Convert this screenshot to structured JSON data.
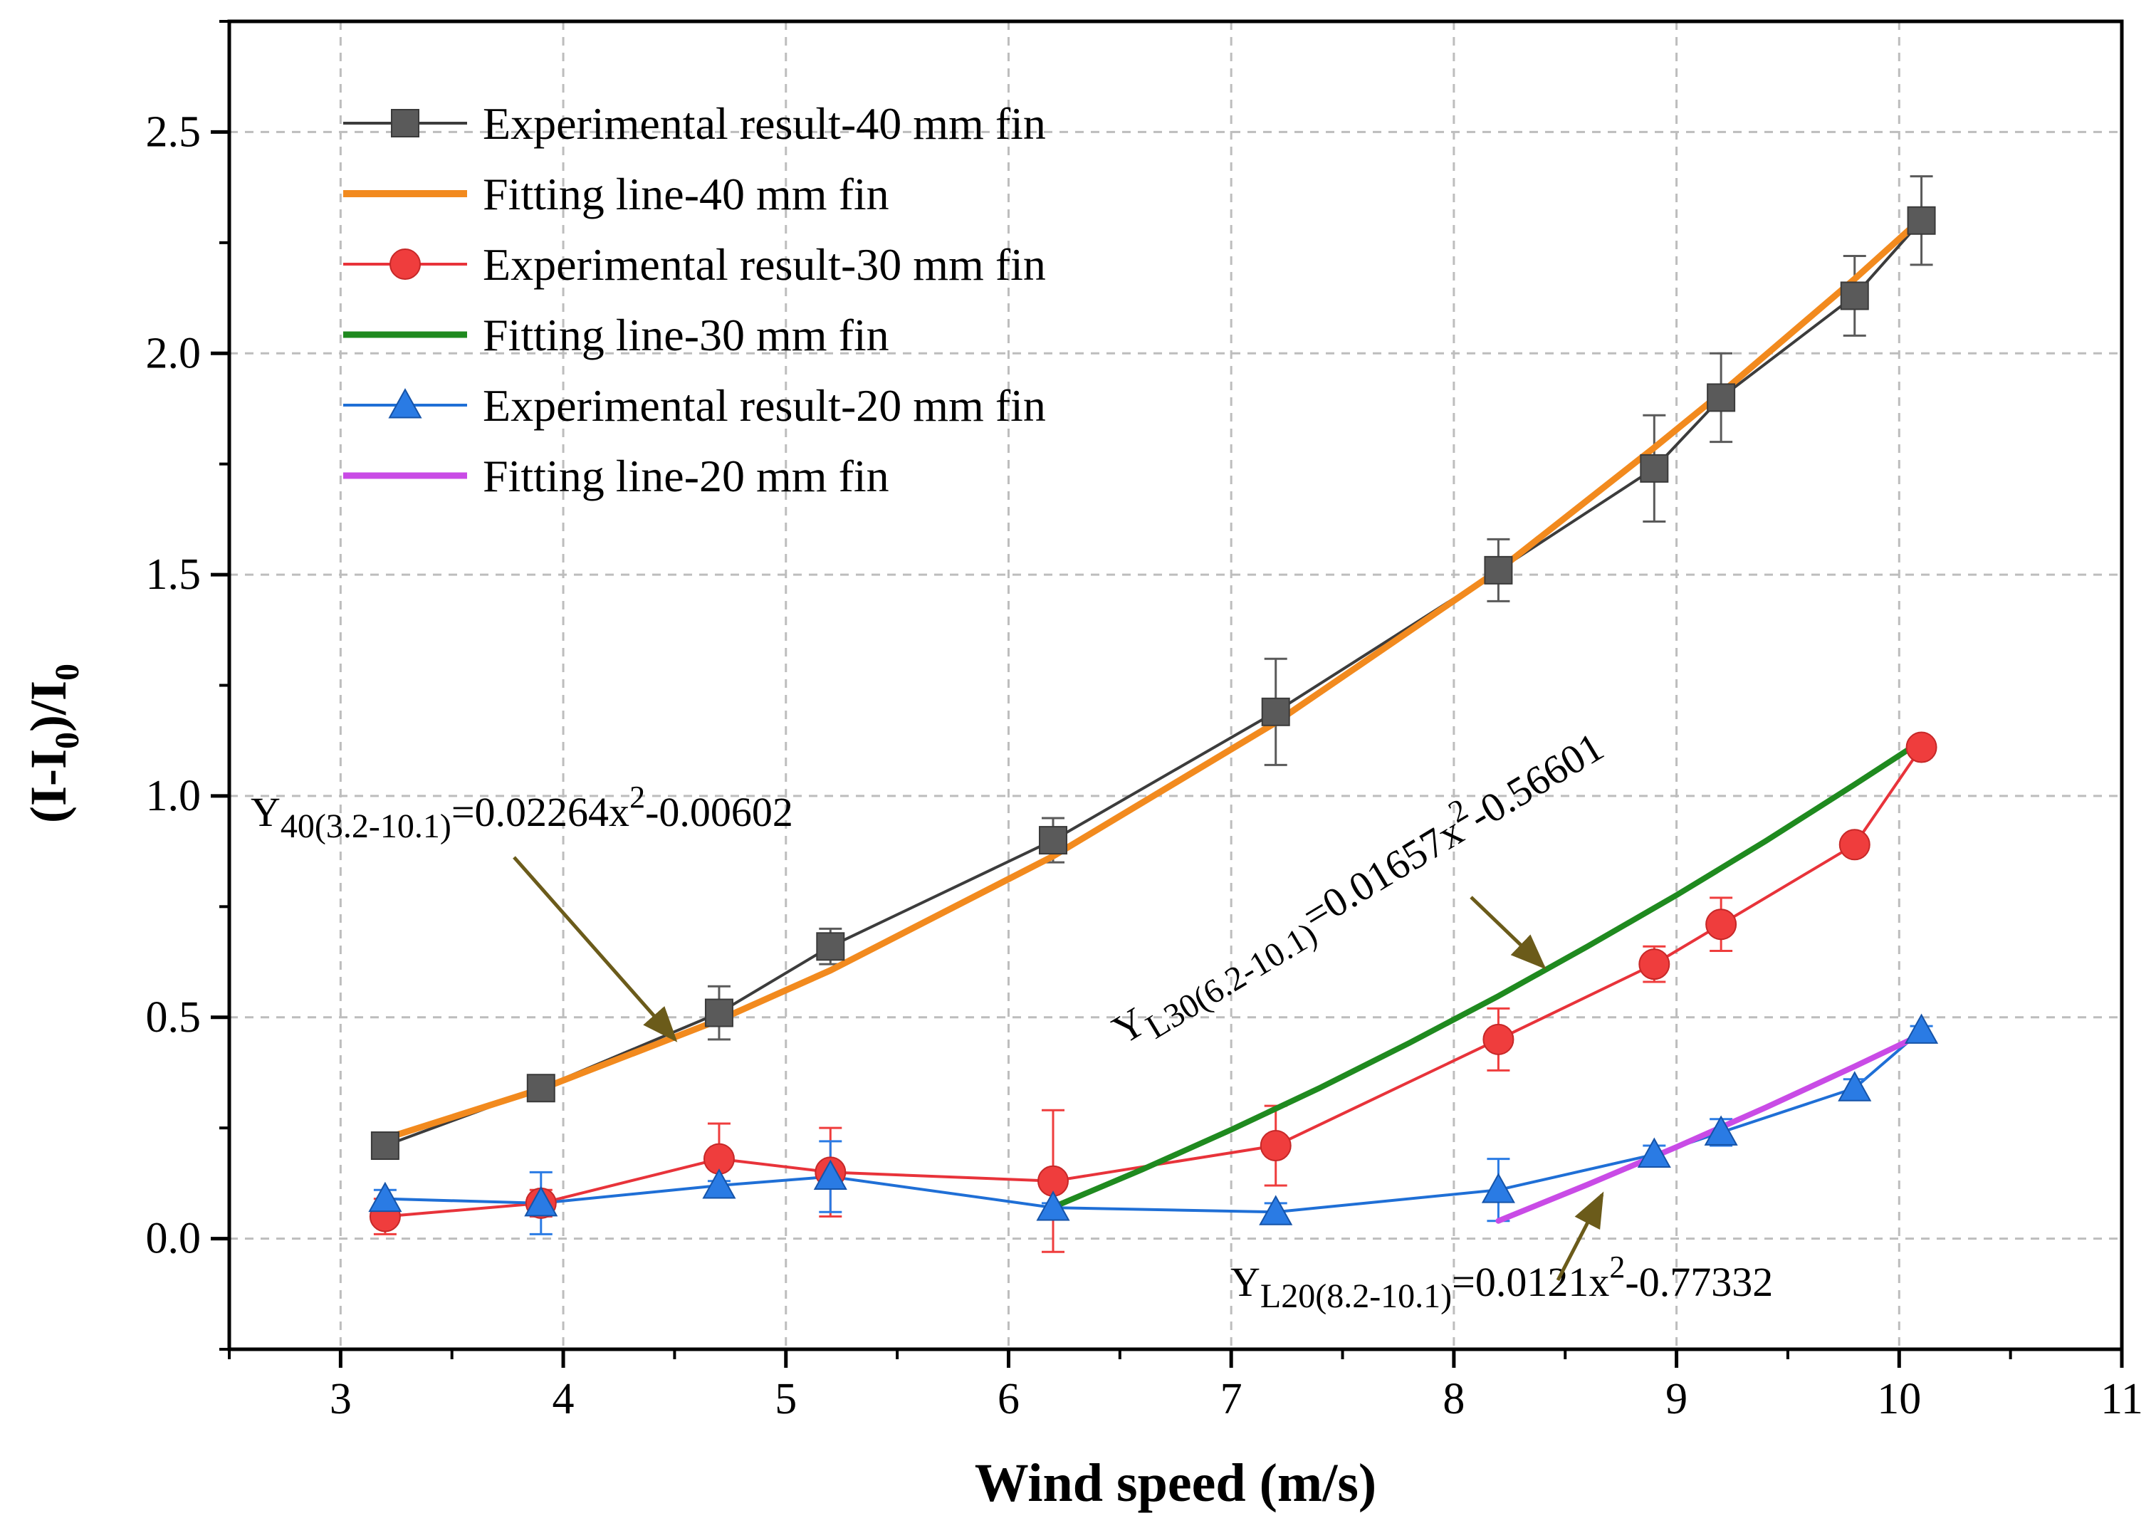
{
  "chart_data": {
    "type": "line",
    "title": "",
    "xlabel": "Wind speed (m/s)",
    "ylabel": {
      "base": "(I-I",
      "sub": "0",
      "mid": ")/I",
      "sub2": "0"
    },
    "xlim": [
      2.5,
      11
    ],
    "ylim": [
      -0.25,
      2.75
    ],
    "xticks": [
      3,
      4,
      5,
      6,
      7,
      8,
      9,
      10,
      11
    ],
    "xtick_labels": [
      "3",
      "4",
      "5",
      "6",
      "7",
      "8",
      "9",
      "10",
      "11"
    ],
    "yticks": [
      0,
      0.5,
      1.0,
      1.5,
      2.0,
      2.5
    ],
    "ytick_labels": [
      "0.0",
      "0.5",
      "1.0",
      "1.5",
      "2.0",
      "2.5"
    ],
    "grid": true,
    "legend_position": "top-left",
    "series": [
      {
        "name": "Experimental result-40 mm fin",
        "kind": "experimental",
        "marker": "square",
        "color": "#5a5a5a",
        "line_color": "#3c3c3c",
        "x": [
          3.2,
          3.9,
          4.7,
          5.2,
          6.2,
          7.2,
          8.2,
          8.9,
          9.2,
          9.8,
          10.1
        ],
        "y": [
          0.21,
          0.34,
          0.51,
          0.66,
          0.9,
          1.19,
          1.51,
          1.74,
          1.9,
          2.13,
          2.3
        ],
        "err": [
          0,
          0,
          0.06,
          0.04,
          0.05,
          0.12,
          0.07,
          0.12,
          0.1,
          0.09,
          0.1
        ]
      },
      {
        "name": "Fitting line-40 mm fin",
        "kind": "fit",
        "color": "#f28a1e",
        "width": 9,
        "x": [
          3.2,
          3.9,
          4.7,
          5.2,
          6.2,
          7.2,
          8.2,
          8.9,
          9.2,
          9.8,
          10.1
        ],
        "y": [
          0.226,
          0.338,
          0.494,
          0.606,
          0.864,
          1.166,
          1.51,
          1.787,
          1.91,
          2.168,
          2.304
        ]
      },
      {
        "name": "Experimental result-30 mm fin",
        "kind": "experimental",
        "marker": "circle",
        "color": "#ef3d3d",
        "line_color": "#e8333a",
        "x": [
          3.2,
          3.9,
          4.7,
          5.2,
          6.2,
          7.2,
          8.2,
          8.9,
          9.2,
          9.8,
          10.1
        ],
        "y": [
          0.05,
          0.08,
          0.18,
          0.15,
          0.13,
          0.21,
          0.45,
          0.62,
          0.71,
          0.89,
          1.11
        ],
        "err": [
          0.04,
          0.03,
          0.08,
          0.1,
          0.16,
          0.09,
          0.07,
          0.04,
          0.06,
          0.02,
          0.02
        ]
      },
      {
        "name": "Fitting line-30 mm fin",
        "kind": "fit",
        "color": "#1f8a1f",
        "width": 8,
        "x": [
          6.2,
          6.6,
          7.0,
          7.4,
          7.8,
          8.2,
          8.6,
          9.0,
          9.4,
          9.8,
          10.1
        ],
        "y": [
          0.071,
          0.156,
          0.246,
          0.341,
          0.442,
          0.548,
          0.66,
          0.776,
          0.898,
          1.026,
          1.124
        ]
      },
      {
        "name": "Experimental result-20 mm fin",
        "kind": "experimental",
        "marker": "triangle",
        "color": "#2a7be4",
        "line_color": "#1f6fd6",
        "x": [
          3.2,
          3.9,
          4.7,
          5.2,
          6.2,
          7.2,
          8.2,
          8.9,
          9.2,
          9.8,
          10.1
        ],
        "y": [
          0.09,
          0.08,
          0.12,
          0.14,
          0.07,
          0.06,
          0.11,
          0.19,
          0.24,
          0.34,
          0.47
        ],
        "err": [
          0.02,
          0.07,
          0.01,
          0.08,
          0.01,
          0.02,
          0.07,
          0.02,
          0.03,
          0.02,
          0.01
        ]
      },
      {
        "name": "Fitting line-20 mm fin",
        "kind": "fit",
        "color": "#c94be6",
        "width": 8,
        "x": [
          8.2,
          8.6,
          9.0,
          9.4,
          9.8,
          10.1
        ],
        "y": [
          0.04,
          0.122,
          0.207,
          0.296,
          0.389,
          0.461
        ]
      }
    ],
    "annotations": [
      {
        "id": "y40",
        "main": "Y",
        "sub": "40(3.2-10.1)",
        "rest": "=0.02264x",
        "sup": "2",
        "tail": "-0.00602"
      },
      {
        "id": "y30",
        "main": "Y",
        "sub": "L30(6.2-10.1)",
        "rest": "=0.01657x",
        "sup": "2",
        "tail": "-0.56601"
      },
      {
        "id": "y20",
        "main": "Y",
        "sub": "L20(8.2-10.1)",
        "rest": "=0.0121x",
        "sup": "2",
        "tail": "-0.77332"
      }
    ],
    "arrow_color": "#6b5b1a"
  }
}
